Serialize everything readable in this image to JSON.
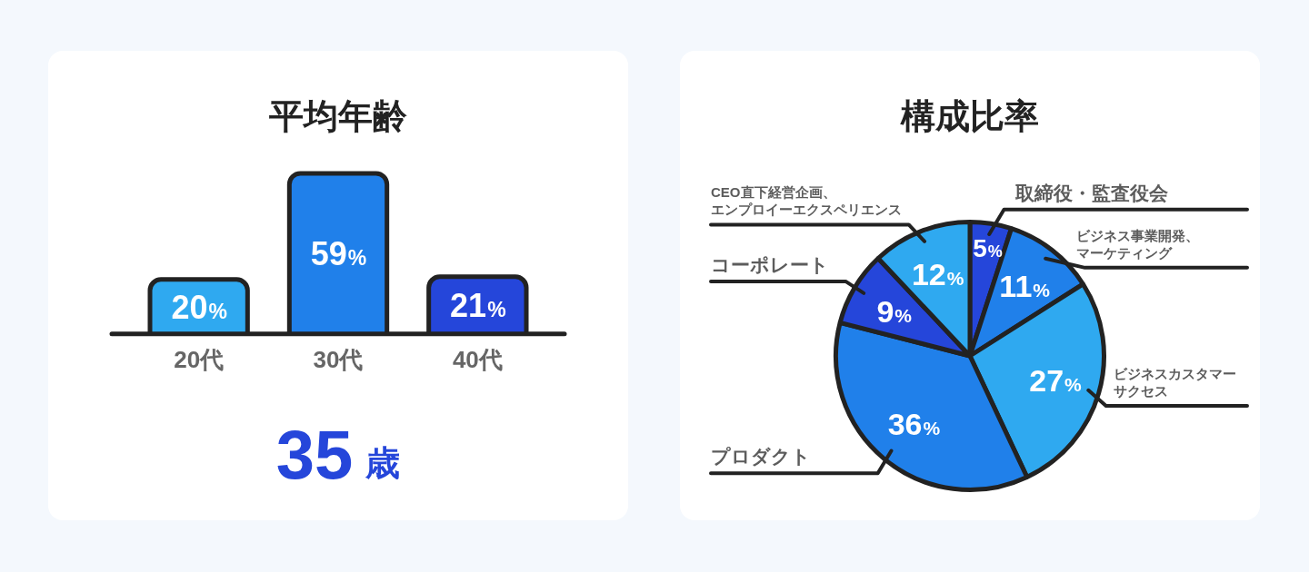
{
  "chart_data": [
    {
      "type": "bar",
      "title": "平均年齢",
      "categories": [
        "20代",
        "30代",
        "40代"
      ],
      "values": [
        20,
        59,
        21
      ],
      "colors": [
        "#2fa9f0",
        "#2080ea",
        "#2546da"
      ],
      "value_labels": [
        "20%",
        "59%",
        "21%"
      ],
      "tick_labels": "x",
      "annotations": [
        "35 歳"
      ]
    },
    {
      "type": "pie",
      "title": "構成比率",
      "categories": [
        "取締役・監査役会",
        "ビジネス事業開発、マーケティング",
        "ビジネスカスタマーサクセス",
        "プロダクト",
        "コーポレート",
        "CEO直下経営企画、エンプロイーエクスペリエンス"
      ],
      "values": [
        5,
        11,
        27,
        36,
        9,
        12
      ],
      "colors": [
        "#2546da",
        "#2080ea",
        "#2fa9f0",
        "#2080ea",
        "#2546da",
        "#2fa9f0"
      ],
      "value_labels": [
        "5%",
        "11%",
        "27%",
        "36%",
        "9%",
        "12%"
      ]
    }
  ]
}
